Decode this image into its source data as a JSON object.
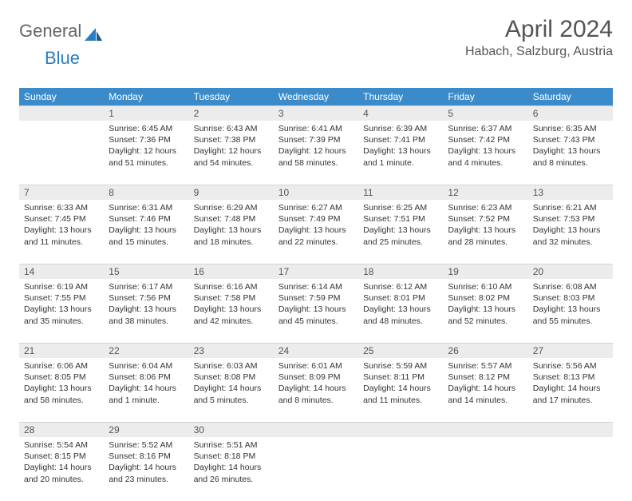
{
  "logo": {
    "general": "General",
    "blue": "Blue"
  },
  "title": "April 2024",
  "location": "Habach, Salzburg, Austria",
  "colors": {
    "header_bg": "#3b8bca",
    "header_fg": "#ffffff",
    "daynum_bg": "#ececec",
    "daynum_fg": "#555555",
    "text": "#333333",
    "logo_gray": "#666666",
    "logo_blue": "#2d7bc0"
  },
  "dayHeaders": [
    "Sunday",
    "Monday",
    "Tuesday",
    "Wednesday",
    "Thursday",
    "Friday",
    "Saturday"
  ],
  "weeks": [
    [
      {
        "num": "",
        "sunrise": "",
        "sunset": "",
        "daylight": ""
      },
      {
        "num": "1",
        "sunrise": "Sunrise: 6:45 AM",
        "sunset": "Sunset: 7:36 PM",
        "daylight": "Daylight: 12 hours and 51 minutes."
      },
      {
        "num": "2",
        "sunrise": "Sunrise: 6:43 AM",
        "sunset": "Sunset: 7:38 PM",
        "daylight": "Daylight: 12 hours and 54 minutes."
      },
      {
        "num": "3",
        "sunrise": "Sunrise: 6:41 AM",
        "sunset": "Sunset: 7:39 PM",
        "daylight": "Daylight: 12 hours and 58 minutes."
      },
      {
        "num": "4",
        "sunrise": "Sunrise: 6:39 AM",
        "sunset": "Sunset: 7:41 PM",
        "daylight": "Daylight: 13 hours and 1 minute."
      },
      {
        "num": "5",
        "sunrise": "Sunrise: 6:37 AM",
        "sunset": "Sunset: 7:42 PM",
        "daylight": "Daylight: 13 hours and 4 minutes."
      },
      {
        "num": "6",
        "sunrise": "Sunrise: 6:35 AM",
        "sunset": "Sunset: 7:43 PM",
        "daylight": "Daylight: 13 hours and 8 minutes."
      }
    ],
    [
      {
        "num": "7",
        "sunrise": "Sunrise: 6:33 AM",
        "sunset": "Sunset: 7:45 PM",
        "daylight": "Daylight: 13 hours and 11 minutes."
      },
      {
        "num": "8",
        "sunrise": "Sunrise: 6:31 AM",
        "sunset": "Sunset: 7:46 PM",
        "daylight": "Daylight: 13 hours and 15 minutes."
      },
      {
        "num": "9",
        "sunrise": "Sunrise: 6:29 AM",
        "sunset": "Sunset: 7:48 PM",
        "daylight": "Daylight: 13 hours and 18 minutes."
      },
      {
        "num": "10",
        "sunrise": "Sunrise: 6:27 AM",
        "sunset": "Sunset: 7:49 PM",
        "daylight": "Daylight: 13 hours and 22 minutes."
      },
      {
        "num": "11",
        "sunrise": "Sunrise: 6:25 AM",
        "sunset": "Sunset: 7:51 PM",
        "daylight": "Daylight: 13 hours and 25 minutes."
      },
      {
        "num": "12",
        "sunrise": "Sunrise: 6:23 AM",
        "sunset": "Sunset: 7:52 PM",
        "daylight": "Daylight: 13 hours and 28 minutes."
      },
      {
        "num": "13",
        "sunrise": "Sunrise: 6:21 AM",
        "sunset": "Sunset: 7:53 PM",
        "daylight": "Daylight: 13 hours and 32 minutes."
      }
    ],
    [
      {
        "num": "14",
        "sunrise": "Sunrise: 6:19 AM",
        "sunset": "Sunset: 7:55 PM",
        "daylight": "Daylight: 13 hours and 35 minutes."
      },
      {
        "num": "15",
        "sunrise": "Sunrise: 6:17 AM",
        "sunset": "Sunset: 7:56 PM",
        "daylight": "Daylight: 13 hours and 38 minutes."
      },
      {
        "num": "16",
        "sunrise": "Sunrise: 6:16 AM",
        "sunset": "Sunset: 7:58 PM",
        "daylight": "Daylight: 13 hours and 42 minutes."
      },
      {
        "num": "17",
        "sunrise": "Sunrise: 6:14 AM",
        "sunset": "Sunset: 7:59 PM",
        "daylight": "Daylight: 13 hours and 45 minutes."
      },
      {
        "num": "18",
        "sunrise": "Sunrise: 6:12 AM",
        "sunset": "Sunset: 8:01 PM",
        "daylight": "Daylight: 13 hours and 48 minutes."
      },
      {
        "num": "19",
        "sunrise": "Sunrise: 6:10 AM",
        "sunset": "Sunset: 8:02 PM",
        "daylight": "Daylight: 13 hours and 52 minutes."
      },
      {
        "num": "20",
        "sunrise": "Sunrise: 6:08 AM",
        "sunset": "Sunset: 8:03 PM",
        "daylight": "Daylight: 13 hours and 55 minutes."
      }
    ],
    [
      {
        "num": "21",
        "sunrise": "Sunrise: 6:06 AM",
        "sunset": "Sunset: 8:05 PM",
        "daylight": "Daylight: 13 hours and 58 minutes."
      },
      {
        "num": "22",
        "sunrise": "Sunrise: 6:04 AM",
        "sunset": "Sunset: 8:06 PM",
        "daylight": "Daylight: 14 hours and 1 minute."
      },
      {
        "num": "23",
        "sunrise": "Sunrise: 6:03 AM",
        "sunset": "Sunset: 8:08 PM",
        "daylight": "Daylight: 14 hours and 5 minutes."
      },
      {
        "num": "24",
        "sunrise": "Sunrise: 6:01 AM",
        "sunset": "Sunset: 8:09 PM",
        "daylight": "Daylight: 14 hours and 8 minutes."
      },
      {
        "num": "25",
        "sunrise": "Sunrise: 5:59 AM",
        "sunset": "Sunset: 8:11 PM",
        "daylight": "Daylight: 14 hours and 11 minutes."
      },
      {
        "num": "26",
        "sunrise": "Sunrise: 5:57 AM",
        "sunset": "Sunset: 8:12 PM",
        "daylight": "Daylight: 14 hours and 14 minutes."
      },
      {
        "num": "27",
        "sunrise": "Sunrise: 5:56 AM",
        "sunset": "Sunset: 8:13 PM",
        "daylight": "Daylight: 14 hours and 17 minutes."
      }
    ],
    [
      {
        "num": "28",
        "sunrise": "Sunrise: 5:54 AM",
        "sunset": "Sunset: 8:15 PM",
        "daylight": "Daylight: 14 hours and 20 minutes."
      },
      {
        "num": "29",
        "sunrise": "Sunrise: 5:52 AM",
        "sunset": "Sunset: 8:16 PM",
        "daylight": "Daylight: 14 hours and 23 minutes."
      },
      {
        "num": "30",
        "sunrise": "Sunrise: 5:51 AM",
        "sunset": "Sunset: 8:18 PM",
        "daylight": "Daylight: 14 hours and 26 minutes."
      },
      {
        "num": "",
        "sunrise": "",
        "sunset": "",
        "daylight": ""
      },
      {
        "num": "",
        "sunrise": "",
        "sunset": "",
        "daylight": ""
      },
      {
        "num": "",
        "sunrise": "",
        "sunset": "",
        "daylight": ""
      },
      {
        "num": "",
        "sunrise": "",
        "sunset": "",
        "daylight": ""
      }
    ]
  ]
}
